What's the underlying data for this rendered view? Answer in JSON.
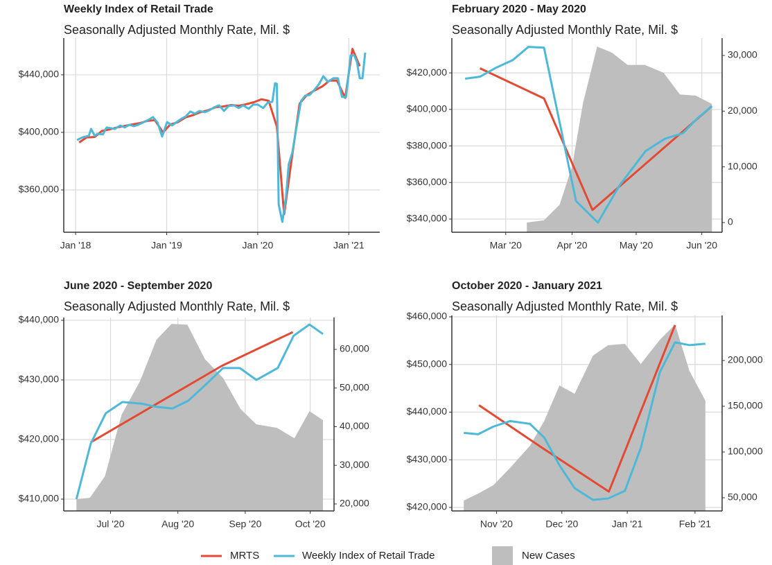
{
  "chart_data": [
    {
      "type": "line",
      "title": "Weekly Index of Retail Trade",
      "subtitle": "Seasonally Adjusted Monthly Rate, Mil. $",
      "grid": true,
      "xlim": [
        2017.87,
        2021.34
      ],
      "xticks": [
        {
          "value": 2018,
          "label": "Jan '18"
        },
        {
          "value": 2019,
          "label": "Jan '19"
        },
        {
          "value": 2020,
          "label": "Jan '20"
        },
        {
          "value": 2021,
          "label": "Jan '21"
        }
      ],
      "ylim": [
        330600,
        465500
      ],
      "yticks": [
        {
          "value": 360000,
          "label": "$360,000"
        },
        {
          "value": 400000,
          "label": "$400,000"
        },
        {
          "value": 440000,
          "label": "$440,000"
        }
      ],
      "series": [
        {
          "name": "MRTS",
          "color": "#e34a33",
          "x": [
            2018.04,
            2018.12,
            2018.21,
            2018.29,
            2018.37,
            2018.46,
            2018.54,
            2018.62,
            2018.71,
            2018.79,
            2018.87,
            2018.96,
            2019.04,
            2019.12,
            2019.21,
            2019.29,
            2019.37,
            2019.46,
            2019.54,
            2019.62,
            2019.71,
            2019.79,
            2019.87,
            2019.96,
            2020.04,
            2020.12,
            2020.21,
            2020.29,
            2020.37,
            2020.46,
            2020.54,
            2020.62,
            2020.71,
            2020.79,
            2020.87,
            2020.96,
            2021.04,
            2021.12
          ],
          "values": [
            393000,
            396500,
            396800,
            401000,
            402000,
            403500,
            404500,
            405500,
            406500,
            408000,
            408500,
            400000,
            405500,
            407000,
            410500,
            412000,
            414000,
            415500,
            417500,
            418000,
            419000,
            418500,
            419500,
            421000,
            423000,
            422000,
            404000,
            343000,
            380000,
            420000,
            426000,
            429000,
            432000,
            436000,
            436000,
            424000,
            458000,
            446000
          ]
        },
        {
          "name": "Weekly Index of Retail Trade",
          "color": "#4db8d8",
          "x": [
            2018.015,
            2018.08,
            2018.145,
            2018.17,
            2018.21,
            2018.24,
            2018.3,
            2018.34,
            2018.39,
            2018.43,
            2018.49,
            2018.54,
            2018.59,
            2018.64,
            2018.69,
            2018.75,
            2018.8,
            2018.85,
            2018.9,
            2018.95,
            2019.005,
            2019.06,
            2019.11,
            2019.165,
            2019.21,
            2019.26,
            2019.31,
            2019.36,
            2019.42,
            2019.47,
            2019.52,
            2019.575,
            2019.63,
            2019.68,
            2019.74,
            2019.79,
            2019.84,
            2019.9,
            2019.95,
            2020.0,
            2020.06,
            2020.11,
            2020.16,
            2020.19,
            2020.21,
            2020.23,
            2020.27,
            2020.31,
            2020.34,
            2020.38,
            2020.43,
            2020.475,
            2020.52,
            2020.57,
            2020.62,
            2020.67,
            2020.72,
            2020.77,
            2020.83,
            2020.88,
            2020.925,
            2020.97,
            2021.02,
            2021.06,
            2021.09,
            2021.12,
            2021.15,
            2021.18
          ],
          "values": [
            394700,
            396600,
            397600,
            402400,
            397600,
            399000,
            398600,
            403400,
            402900,
            402400,
            404800,
            403400,
            405300,
            404300,
            405300,
            407200,
            408700,
            410600,
            406800,
            397100,
            407200,
            404800,
            407200,
            409600,
            411100,
            414500,
            413000,
            414900,
            414000,
            415400,
            417400,
            418800,
            414900,
            418300,
            418800,
            416900,
            418800,
            416400,
            419300,
            419300,
            416900,
            420700,
            421200,
            434200,
            433700,
            349900,
            337800,
            354700,
            377800,
            386000,
            405300,
            421700,
            425500,
            426000,
            429400,
            433300,
            439000,
            435200,
            437600,
            437600,
            424600,
            424600,
            453500,
            453500,
            448700,
            437600,
            437600,
            455400
          ]
        }
      ]
    },
    {
      "type": "line",
      "title": "February 2020 - May 2020",
      "subtitle": "Seasonally Adjusted Monthly Rate, Mil. $",
      "grid": true,
      "xlim": [
        2020.095,
        2020.441
      ],
      "xticks": [
        {
          "value": 2020.164,
          "label": "Mar '20"
        },
        {
          "value": 2020.249,
          "label": "Apr '20"
        },
        {
          "value": 2020.331,
          "label": "May '20"
        },
        {
          "value": 2020.415,
          "label": "Jun '20"
        }
      ],
      "ylim": [
        332800,
        439000
      ],
      "yticks": [
        {
          "value": 340000,
          "label": "$340,000"
        },
        {
          "value": 360000,
          "label": "$360,000"
        },
        {
          "value": 380000,
          "label": "$380,000"
        },
        {
          "value": 400000,
          "label": "$400,000"
        },
        {
          "value": 420000,
          "label": "$420,000"
        }
      ],
      "y2lim": [
        -1740,
        33110
      ],
      "y2ticks": [
        0,
        {
          "value": 10000,
          "label": "10,000"
        },
        {
          "value": 20000,
          "label": "20,000"
        },
        {
          "value": 30000,
          "label": "30,000"
        }
      ],
      "series": [
        {
          "name": "MRTS",
          "color": "#e34a33",
          "x": [
            2020.131,
            2020.213,
            2020.275,
            2020.428
          ],
          "values": [
            422500,
            406000,
            345000,
            401800
          ]
        },
        {
          "name": "Weekly Index of Retail Trade",
          "color": "#4db8d8",
          "x": [
            2020.112,
            2020.131,
            2020.152,
            2020.173,
            2020.193,
            2020.213,
            2020.254,
            2020.282,
            2020.31,
            2020.343,
            2020.368,
            2020.391,
            2020.409,
            2020.428
          ],
          "values": [
            416800,
            417900,
            422900,
            427000,
            434200,
            433800,
            349900,
            338100,
            358600,
            377200,
            384000,
            387000,
            395000,
            401800
          ]
        },
        {
          "name": "New Cases",
          "color": "#bebebe",
          "type": "area",
          "axis": "y2",
          "x": [
            2020.191,
            2020.213,
            2020.233,
            2020.249,
            2020.263,
            2020.281,
            2020.3,
            2020.32,
            2020.342,
            2020.366,
            2020.387,
            2020.407,
            2020.428
          ],
          "values": [
            0,
            400,
            3200,
            10100,
            21500,
            31600,
            30500,
            28300,
            28300,
            26900,
            23000,
            22800,
            21300
          ]
        }
      ]
    },
    {
      "type": "line",
      "title": "June 2020 - September 2020",
      "subtitle": "Seasonally Adjusted Monthly Rate, Mil. $",
      "grid": true,
      "xlim": [
        2020.438,
        2020.779
      ],
      "xticks": [
        {
          "value": 2020.497,
          "label": "Jul '20"
        },
        {
          "value": 2020.582,
          "label": "Aug '20"
        },
        {
          "value": 2020.667,
          "label": "Sep '20"
        },
        {
          "value": 2020.749,
          "label": "Oct '20"
        }
      ],
      "ylim": [
        408020,
        440470
      ],
      "yticks": [
        {
          "value": 410000,
          "label": "$410,000"
        },
        {
          "value": 420000,
          "label": "$420,000"
        },
        {
          "value": 430000,
          "label": "$430,000"
        },
        {
          "value": 440000,
          "label": "$440,000"
        }
      ],
      "y2lim": [
        18200,
        68250
      ],
      "y2ticks": [
        {
          "value": 20000,
          "label": "20,000"
        },
        {
          "value": 30000,
          "label": "30,000"
        },
        {
          "value": 40000,
          "label": "40,000"
        },
        {
          "value": 50000,
          "label": "50,000"
        },
        {
          "value": 60000,
          "label": "60,000"
        }
      ],
      "series": [
        {
          "name": "MRTS",
          "color": "#e34a33",
          "x": [
            2020.472,
            2020.637,
            2020.727
          ],
          "values": [
            419530,
            432330,
            438020
          ]
        },
        {
          "name": "Weekly Index of Retail Trade",
          "color": "#4db8d8",
          "x": [
            2020.454,
            2020.472,
            2020.491,
            2020.512,
            2020.537,
            2020.554,
            2020.575,
            2020.595,
            2020.617,
            2020.639,
            2020.66,
            2020.681,
            2020.708,
            2020.728,
            2020.748,
            2020.765
          ],
          "values": [
            410000,
            419300,
            424400,
            426300,
            426000,
            425500,
            425200,
            426500,
            429200,
            432000,
            432000,
            430000,
            432000,
            437400,
            439300,
            437700
          ]
        },
        {
          "name": "New Cases",
          "color": "#bebebe",
          "type": "area",
          "axis": "y2",
          "x": [
            2020.454,
            2020.471,
            2020.49,
            2020.511,
            2020.534,
            2020.555,
            2020.574,
            2020.594,
            2020.616,
            2020.639,
            2020.661,
            2020.681,
            2020.707,
            2020.729,
            2020.748,
            2020.765
          ],
          "values": [
            21250,
            21600,
            27200,
            43100,
            51700,
            62500,
            66600,
            66400,
            57500,
            52600,
            44600,
            40600,
            39700,
            37000,
            44000,
            41700
          ]
        }
      ]
    },
    {
      "type": "line",
      "title": "October 2020 - January 2021",
      "subtitle": "Seasonally Adjusted Monthly Rate, Mil. $",
      "grid": true,
      "xlim": [
        2020.78,
        2021.119
      ],
      "xticks": [
        {
          "value": 2020.836,
          "label": "Nov '20"
        },
        {
          "value": 2020.918,
          "label": "Dec '20"
        },
        {
          "value": 2021.0,
          "label": "Jan '21"
        },
        {
          "value": 2021.085,
          "label": "Feb '21"
        }
      ],
      "ylim": [
        419270,
        460290
      ],
      "yticks": [
        {
          "value": 420000,
          "label": "$420,000"
        },
        {
          "value": 430000,
          "label": "$430,000"
        },
        {
          "value": 440000,
          "label": "$440,000"
        },
        {
          "value": 450000,
          "label": "$450,000"
        },
        {
          "value": 460000,
          "label": "$460,000"
        }
      ],
      "y2lim": [
        35600,
        249240
      ],
      "y2ticks": [
        {
          "value": 50000,
          "label": "50,000"
        },
        {
          "value": 100000,
          "label": "100,000"
        },
        {
          "value": 150000,
          "label": "150,000"
        },
        {
          "value": 200000,
          "label": "200,000"
        }
      ],
      "series": [
        {
          "name": "MRTS",
          "color": "#e34a33",
          "x": [
            2020.814,
            2020.895,
            2020.977,
            2021.06
          ],
          "values": [
            441450,
            432320,
            423330,
            458260
          ]
        },
        {
          "name": "Weekly Index of Retail Trade",
          "color": "#4db8d8",
          "x": [
            2020.795,
            2020.813,
            2020.832,
            2020.853,
            2020.878,
            2020.896,
            2020.915,
            2020.934,
            2020.957,
            2020.976,
            2020.997,
            2021.017,
            2021.041,
            2021.06,
            2021.078,
            2021.098
          ],
          "values": [
            435650,
            435360,
            436960,
            438120,
            437540,
            434640,
            428840,
            424060,
            421590,
            421880,
            423480,
            432460,
            448410,
            454640,
            454060,
            454350
          ]
        },
        {
          "name": "New Cases",
          "color": "#bebebe",
          "type": "area",
          "axis": "y2",
          "x": [
            2020.795,
            2020.813,
            2020.832,
            2020.853,
            2020.878,
            2020.896,
            2020.915,
            2020.934,
            2020.957,
            2020.976,
            2020.997,
            2021.017,
            2021.041,
            2021.06,
            2021.078,
            2021.098
          ],
          "values": [
            46970,
            54550,
            63640,
            82580,
            106820,
            134090,
            172730,
            163640,
            205300,
            216670,
            218180,
            196210,
            222730,
            239390,
            188640,
            156060
          ]
        }
      ]
    }
  ]
}
